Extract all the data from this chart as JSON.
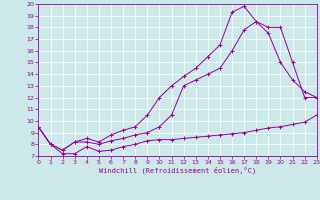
{
  "xlabel": "Windchill (Refroidissement éolien,°C)",
  "xlim": [
    0,
    23
  ],
  "ylim": [
    7,
    20
  ],
  "xticks": [
    0,
    1,
    2,
    3,
    4,
    5,
    6,
    7,
    8,
    9,
    10,
    11,
    12,
    13,
    14,
    15,
    16,
    17,
    18,
    19,
    20,
    21,
    22,
    23
  ],
  "yticks": [
    7,
    8,
    9,
    10,
    11,
    12,
    13,
    14,
    15,
    16,
    17,
    18,
    19,
    20
  ],
  "color": "#990099",
  "bg_color": "#cce8e8",
  "line1_x": [
    0,
    1,
    2,
    3,
    4,
    5,
    6,
    7,
    8,
    9,
    10,
    11,
    12,
    13,
    14,
    15,
    16,
    17,
    18,
    19,
    20,
    21,
    22,
    23
  ],
  "line1_y": [
    9.5,
    8.0,
    7.2,
    7.2,
    7.8,
    7.4,
    7.5,
    7.8,
    8.0,
    8.3,
    8.4,
    8.4,
    8.5,
    8.6,
    8.7,
    8.8,
    8.9,
    9.0,
    9.2,
    9.4,
    9.5,
    9.7,
    9.9,
    10.5
  ],
  "line2_x": [
    0,
    1,
    2,
    3,
    4,
    5,
    6,
    7,
    8,
    9,
    10,
    11,
    12,
    13,
    14,
    15,
    16,
    17,
    18,
    19,
    20,
    21,
    22,
    23
  ],
  "line2_y": [
    9.5,
    8.0,
    7.5,
    8.2,
    8.2,
    8.0,
    8.3,
    8.5,
    8.8,
    9.0,
    9.5,
    10.5,
    13.0,
    13.5,
    14.0,
    14.5,
    16.0,
    17.8,
    18.5,
    18.0,
    18.0,
    15.0,
    12.0,
    12.0
  ],
  "line3_x": [
    0,
    1,
    2,
    3,
    4,
    5,
    6,
    7,
    8,
    9,
    10,
    11,
    12,
    13,
    14,
    15,
    16,
    17,
    18,
    19,
    20,
    21,
    22,
    23
  ],
  "line3_y": [
    9.5,
    8.0,
    7.5,
    8.2,
    8.5,
    8.2,
    8.8,
    9.2,
    9.5,
    10.5,
    12.0,
    13.0,
    13.8,
    14.5,
    15.5,
    16.5,
    19.3,
    19.8,
    18.5,
    17.5,
    15.0,
    13.5,
    12.5,
    12.0
  ]
}
